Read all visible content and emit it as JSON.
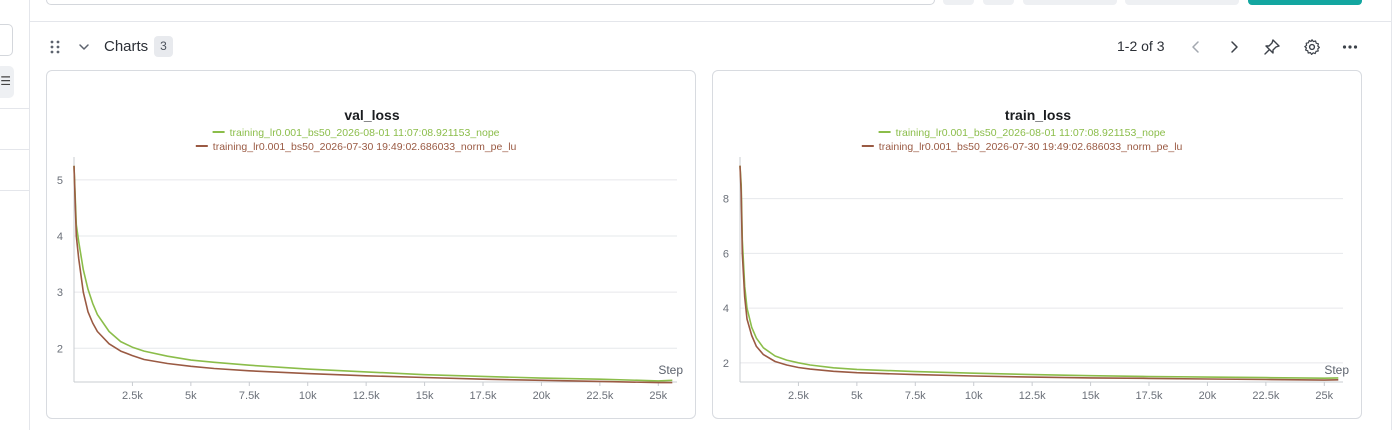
{
  "section": {
    "title": "Charts",
    "count": "3",
    "pager_text": "1-2 of 3"
  },
  "icons": {
    "drag": "drag-handle-icon",
    "collapse": "chevron-down-icon",
    "prev": "chevron-left-icon",
    "next": "chevron-right-icon",
    "pin": "pin-icon",
    "settings": "gear-icon",
    "more": "more-horizontal-icon"
  },
  "colors": {
    "series_nope": "#8bbd4a",
    "series_norm_pe_lu": "#9a5a43",
    "accent": "#13a6a0"
  },
  "chart_data": [
    {
      "type": "line",
      "title": "val_loss",
      "xlabel": "Step",
      "ylabel": "",
      "xlim": [
        0,
        25800
      ],
      "ylim": [
        1.4,
        5.3
      ],
      "x_ticks": [
        2500,
        5000,
        7500,
        10000,
        12500,
        15000,
        17500,
        20000,
        22500,
        25000
      ],
      "x_tick_labels": [
        "2.5k",
        "5k",
        "7.5k",
        "10k",
        "12.5k",
        "15k",
        "17.5k",
        "20k",
        "22.5k",
        "25k"
      ],
      "y_ticks": [
        2,
        3,
        4,
        5
      ],
      "y_tick_labels": [
        "2",
        "3",
        "4",
        "5"
      ],
      "grid": true,
      "legend": "top",
      "series": [
        {
          "name": "training_lr0.001_bs50_2026-08-01 11:07:08.921153_nope",
          "x": [
            0,
            100,
            200,
            400,
            600,
            800,
            1000,
            1500,
            2000,
            2500,
            3000,
            4000,
            5000,
            6000,
            7500,
            10000,
            12500,
            15000,
            17500,
            20000,
            22500,
            25000,
            25600
          ],
          "y": [
            5.25,
            4.2,
            3.9,
            3.4,
            3.05,
            2.8,
            2.6,
            2.3,
            2.12,
            2.02,
            1.95,
            1.86,
            1.79,
            1.75,
            1.7,
            1.63,
            1.58,
            1.53,
            1.5,
            1.47,
            1.45,
            1.42,
            1.43
          ]
        },
        {
          "name": "training_lr0.001_bs50_2026-07-30 19:49:02.686033_norm_pe_lu",
          "x": [
            0,
            100,
            200,
            400,
            600,
            800,
            1000,
            1500,
            2000,
            2500,
            3000,
            4000,
            5000,
            6000,
            7500,
            10000,
            12500,
            15000,
            17500,
            20000,
            22500,
            25000,
            25600
          ],
          "y": [
            5.25,
            4.0,
            3.6,
            3.0,
            2.65,
            2.45,
            2.3,
            2.08,
            1.95,
            1.87,
            1.8,
            1.73,
            1.68,
            1.64,
            1.6,
            1.55,
            1.51,
            1.48,
            1.45,
            1.43,
            1.41,
            1.39,
            1.39
          ]
        }
      ]
    },
    {
      "type": "line",
      "title": "train_loss",
      "xlabel": "Step",
      "ylabel": "",
      "xlim": [
        0,
        25800
      ],
      "ylim": [
        1.3,
        9.3
      ],
      "x_ticks": [
        2500,
        5000,
        7500,
        10000,
        12500,
        15000,
        17500,
        20000,
        22500,
        25000
      ],
      "x_tick_labels": [
        "2.5k",
        "5k",
        "7.5k",
        "10k",
        "12.5k",
        "15k",
        "17.5k",
        "20k",
        "22.5k",
        "25k"
      ],
      "y_ticks": [
        2,
        4,
        6,
        8
      ],
      "y_tick_labels": [
        "2",
        "4",
        "6",
        "8"
      ],
      "grid": true,
      "legend": "top",
      "series": [
        {
          "name": "training_lr0.001_bs50_2026-08-01 11:07:08.921153_nope",
          "x": [
            0,
            50,
            100,
            200,
            300,
            500,
            700,
            1000,
            1500,
            2000,
            2500,
            3000,
            4000,
            5000,
            7500,
            10000,
            12500,
            15000,
            17500,
            20000,
            22500,
            25000,
            25600
          ],
          "y": [
            9.2,
            8.5,
            6.5,
            4.8,
            4.0,
            3.3,
            2.9,
            2.55,
            2.25,
            2.1,
            2.0,
            1.92,
            1.82,
            1.76,
            1.68,
            1.62,
            1.57,
            1.53,
            1.5,
            1.48,
            1.46,
            1.44,
            1.45
          ]
        },
        {
          "name": "training_lr0.001_bs50_2026-07-30 19:49:02.686033_norm_pe_lu",
          "x": [
            0,
            50,
            100,
            200,
            300,
            500,
            700,
            1000,
            1500,
            2000,
            2500,
            3000,
            4000,
            5000,
            7500,
            10000,
            12500,
            15000,
            17500,
            20000,
            22500,
            25000,
            25600
          ],
          "y": [
            9.2,
            8.2,
            6.0,
            4.4,
            3.6,
            3.0,
            2.6,
            2.3,
            2.05,
            1.92,
            1.83,
            1.77,
            1.69,
            1.64,
            1.57,
            1.52,
            1.48,
            1.45,
            1.43,
            1.41,
            1.39,
            1.37,
            1.38
          ]
        }
      ]
    }
  ]
}
